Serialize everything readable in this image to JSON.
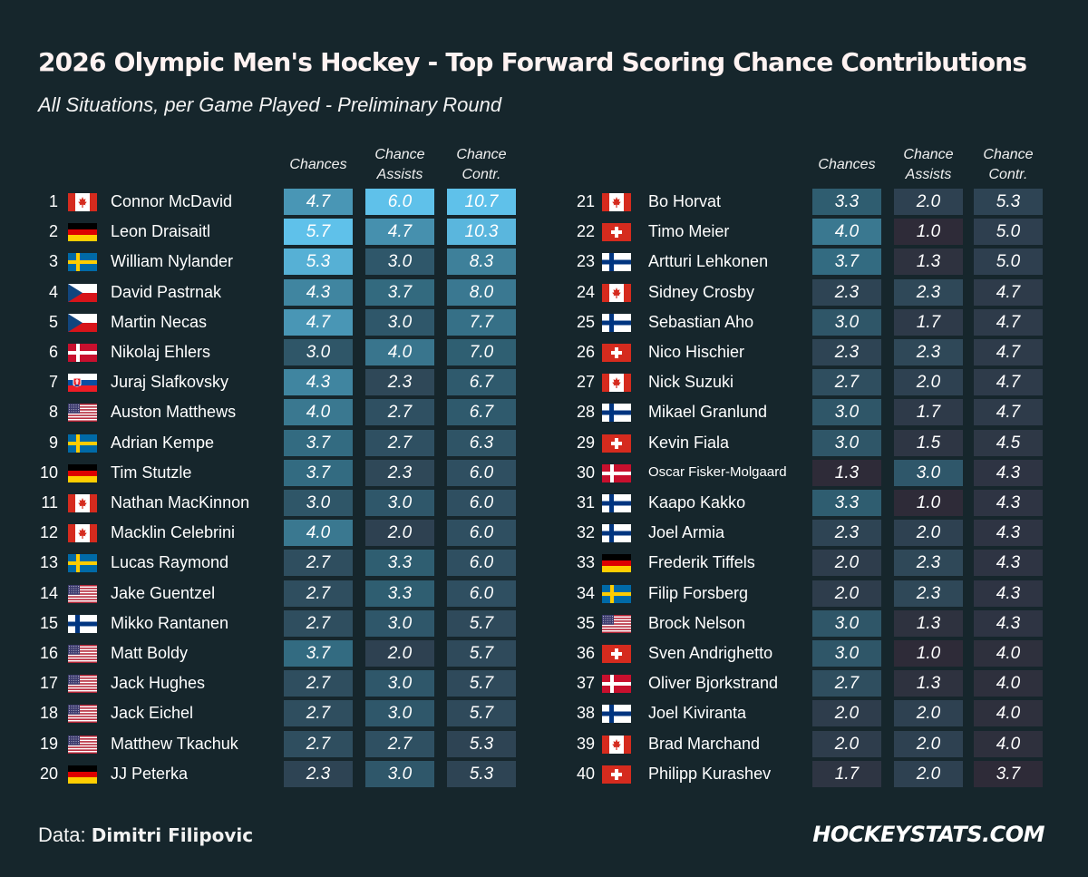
{
  "header": {
    "title": "2026 Olympic Men's Hockey - Top Forward Scoring Chance Contributions",
    "subtitle": "All Situations, per Game Played - Preliminary Round"
  },
  "footer": {
    "data_label": "Data:",
    "data_source": "Dimitri Filipovic",
    "brand": "HOCKEYSTATS.COM"
  },
  "colors": {
    "background": "#16262c",
    "cell_low": "#2e2b38",
    "cell_mid": "#2f6276",
    "cell_high": "#5fc1ea"
  },
  "chart_data": {
    "type": "table",
    "columns": [
      "Chances",
      "Chance\nAssists",
      "Chance\nContr."
    ],
    "rows": [
      {
        "rank": 1,
        "country": "CAN",
        "player": "Connor McDavid",
        "chances": 4.7,
        "assists": 6.0,
        "contr": 10.7
      },
      {
        "rank": 2,
        "country": "GER",
        "player": "Leon Draisaitl",
        "chances": 5.7,
        "assists": 4.7,
        "contr": 10.3
      },
      {
        "rank": 3,
        "country": "SWE",
        "player": "William Nylander",
        "chances": 5.3,
        "assists": 3.0,
        "contr": 8.3
      },
      {
        "rank": 4,
        "country": "CZE",
        "player": "David Pastrnak",
        "chances": 4.3,
        "assists": 3.7,
        "contr": 8.0
      },
      {
        "rank": 5,
        "country": "CZE",
        "player": "Martin Necas",
        "chances": 4.7,
        "assists": 3.0,
        "contr": 7.7
      },
      {
        "rank": 6,
        "country": "DEN",
        "player": "Nikolaj Ehlers",
        "chances": 3.0,
        "assists": 4.0,
        "contr": 7.0
      },
      {
        "rank": 7,
        "country": "SVK",
        "player": "Juraj Slafkovsky",
        "chances": 4.3,
        "assists": 2.3,
        "contr": 6.7
      },
      {
        "rank": 8,
        "country": "USA",
        "player": "Auston Matthews",
        "chances": 4.0,
        "assists": 2.7,
        "contr": 6.7
      },
      {
        "rank": 9,
        "country": "SWE",
        "player": "Adrian Kempe",
        "chances": 3.7,
        "assists": 2.7,
        "contr": 6.3
      },
      {
        "rank": 10,
        "country": "GER",
        "player": "Tim Stutzle",
        "chances": 3.7,
        "assists": 2.3,
        "contr": 6.0
      },
      {
        "rank": 11,
        "country": "CAN",
        "player": "Nathan MacKinnon",
        "chances": 3.0,
        "assists": 3.0,
        "contr": 6.0
      },
      {
        "rank": 12,
        "country": "CAN",
        "player": "Macklin Celebrini",
        "chances": 4.0,
        "assists": 2.0,
        "contr": 6.0
      },
      {
        "rank": 13,
        "country": "SWE",
        "player": "Lucas Raymond",
        "chances": 2.7,
        "assists": 3.3,
        "contr": 6.0
      },
      {
        "rank": 14,
        "country": "USA",
        "player": "Jake Guentzel",
        "chances": 2.7,
        "assists": 3.3,
        "contr": 6.0
      },
      {
        "rank": 15,
        "country": "FIN",
        "player": "Mikko Rantanen",
        "chances": 2.7,
        "assists": 3.0,
        "contr": 5.7
      },
      {
        "rank": 16,
        "country": "USA",
        "player": "Matt Boldy",
        "chances": 3.7,
        "assists": 2.0,
        "contr": 5.7
      },
      {
        "rank": 17,
        "country": "USA",
        "player": "Jack Hughes",
        "chances": 2.7,
        "assists": 3.0,
        "contr": 5.7
      },
      {
        "rank": 18,
        "country": "USA",
        "player": "Jack Eichel",
        "chances": 2.7,
        "assists": 3.0,
        "contr": 5.7
      },
      {
        "rank": 19,
        "country": "USA",
        "player": "Matthew Tkachuk",
        "chances": 2.7,
        "assists": 2.7,
        "contr": 5.3
      },
      {
        "rank": 20,
        "country": "GER",
        "player": "JJ Peterka",
        "chances": 2.3,
        "assists": 3.0,
        "contr": 5.3
      },
      {
        "rank": 21,
        "country": "CAN",
        "player": "Bo Horvat",
        "chances": 3.3,
        "assists": 2.0,
        "contr": 5.3
      },
      {
        "rank": 22,
        "country": "SUI",
        "player": "Timo Meier",
        "chances": 4.0,
        "assists": 1.0,
        "contr": 5.0
      },
      {
        "rank": 23,
        "country": "FIN",
        "player": "Artturi Lehkonen",
        "chances": 3.7,
        "assists": 1.3,
        "contr": 5.0
      },
      {
        "rank": 24,
        "country": "CAN",
        "player": "Sidney Crosby",
        "chances": 2.3,
        "assists": 2.3,
        "contr": 4.7
      },
      {
        "rank": 25,
        "country": "FIN",
        "player": "Sebastian Aho",
        "chances": 3.0,
        "assists": 1.7,
        "contr": 4.7
      },
      {
        "rank": 26,
        "country": "SUI",
        "player": "Nico Hischier",
        "chances": 2.3,
        "assists": 2.3,
        "contr": 4.7
      },
      {
        "rank": 27,
        "country": "CAN",
        "player": "Nick Suzuki",
        "chances": 2.7,
        "assists": 2.0,
        "contr": 4.7
      },
      {
        "rank": 28,
        "country": "FIN",
        "player": "Mikael Granlund",
        "chances": 3.0,
        "assists": 1.7,
        "contr": 4.7
      },
      {
        "rank": 29,
        "country": "SUI",
        "player": "Kevin Fiala",
        "chances": 3.0,
        "assists": 1.5,
        "contr": 4.5
      },
      {
        "rank": 30,
        "country": "DEN",
        "player": "Oscar Fisker-Molgaard",
        "chances": 1.3,
        "assists": 3.0,
        "contr": 4.3
      },
      {
        "rank": 31,
        "country": "FIN",
        "player": "Kaapo Kakko",
        "chances": 3.3,
        "assists": 1.0,
        "contr": 4.3
      },
      {
        "rank": 32,
        "country": "FIN",
        "player": "Joel Armia",
        "chances": 2.3,
        "assists": 2.0,
        "contr": 4.3
      },
      {
        "rank": 33,
        "country": "GER",
        "player": "Frederik Tiffels",
        "chances": 2.0,
        "assists": 2.3,
        "contr": 4.3
      },
      {
        "rank": 34,
        "country": "SWE",
        "player": "Filip Forsberg",
        "chances": 2.0,
        "assists": 2.3,
        "contr": 4.3
      },
      {
        "rank": 35,
        "country": "USA",
        "player": "Brock Nelson",
        "chances": 3.0,
        "assists": 1.3,
        "contr": 4.3
      },
      {
        "rank": 36,
        "country": "SUI",
        "player": "Sven Andrighetto",
        "chances": 3.0,
        "assists": 1.0,
        "contr": 4.0
      },
      {
        "rank": 37,
        "country": "DEN",
        "player": "Oliver Bjorkstrand",
        "chances": 2.7,
        "assists": 1.3,
        "contr": 4.0
      },
      {
        "rank": 38,
        "country": "FIN",
        "player": "Joel Kiviranta",
        "chances": 2.0,
        "assists": 2.0,
        "contr": 4.0
      },
      {
        "rank": 39,
        "country": "CAN",
        "player": "Brad Marchand",
        "chances": 2.0,
        "assists": 2.0,
        "contr": 4.0
      },
      {
        "rank": 40,
        "country": "SUI",
        "player": "Philipp Kurashev",
        "chances": 1.7,
        "assists": 2.0,
        "contr": 3.7
      }
    ],
    "color_scale": {
      "chances": [
        1.3,
        5.7
      ],
      "assists": [
        1.0,
        6.0
      ],
      "contr": [
        3.7,
        10.7
      ]
    }
  }
}
